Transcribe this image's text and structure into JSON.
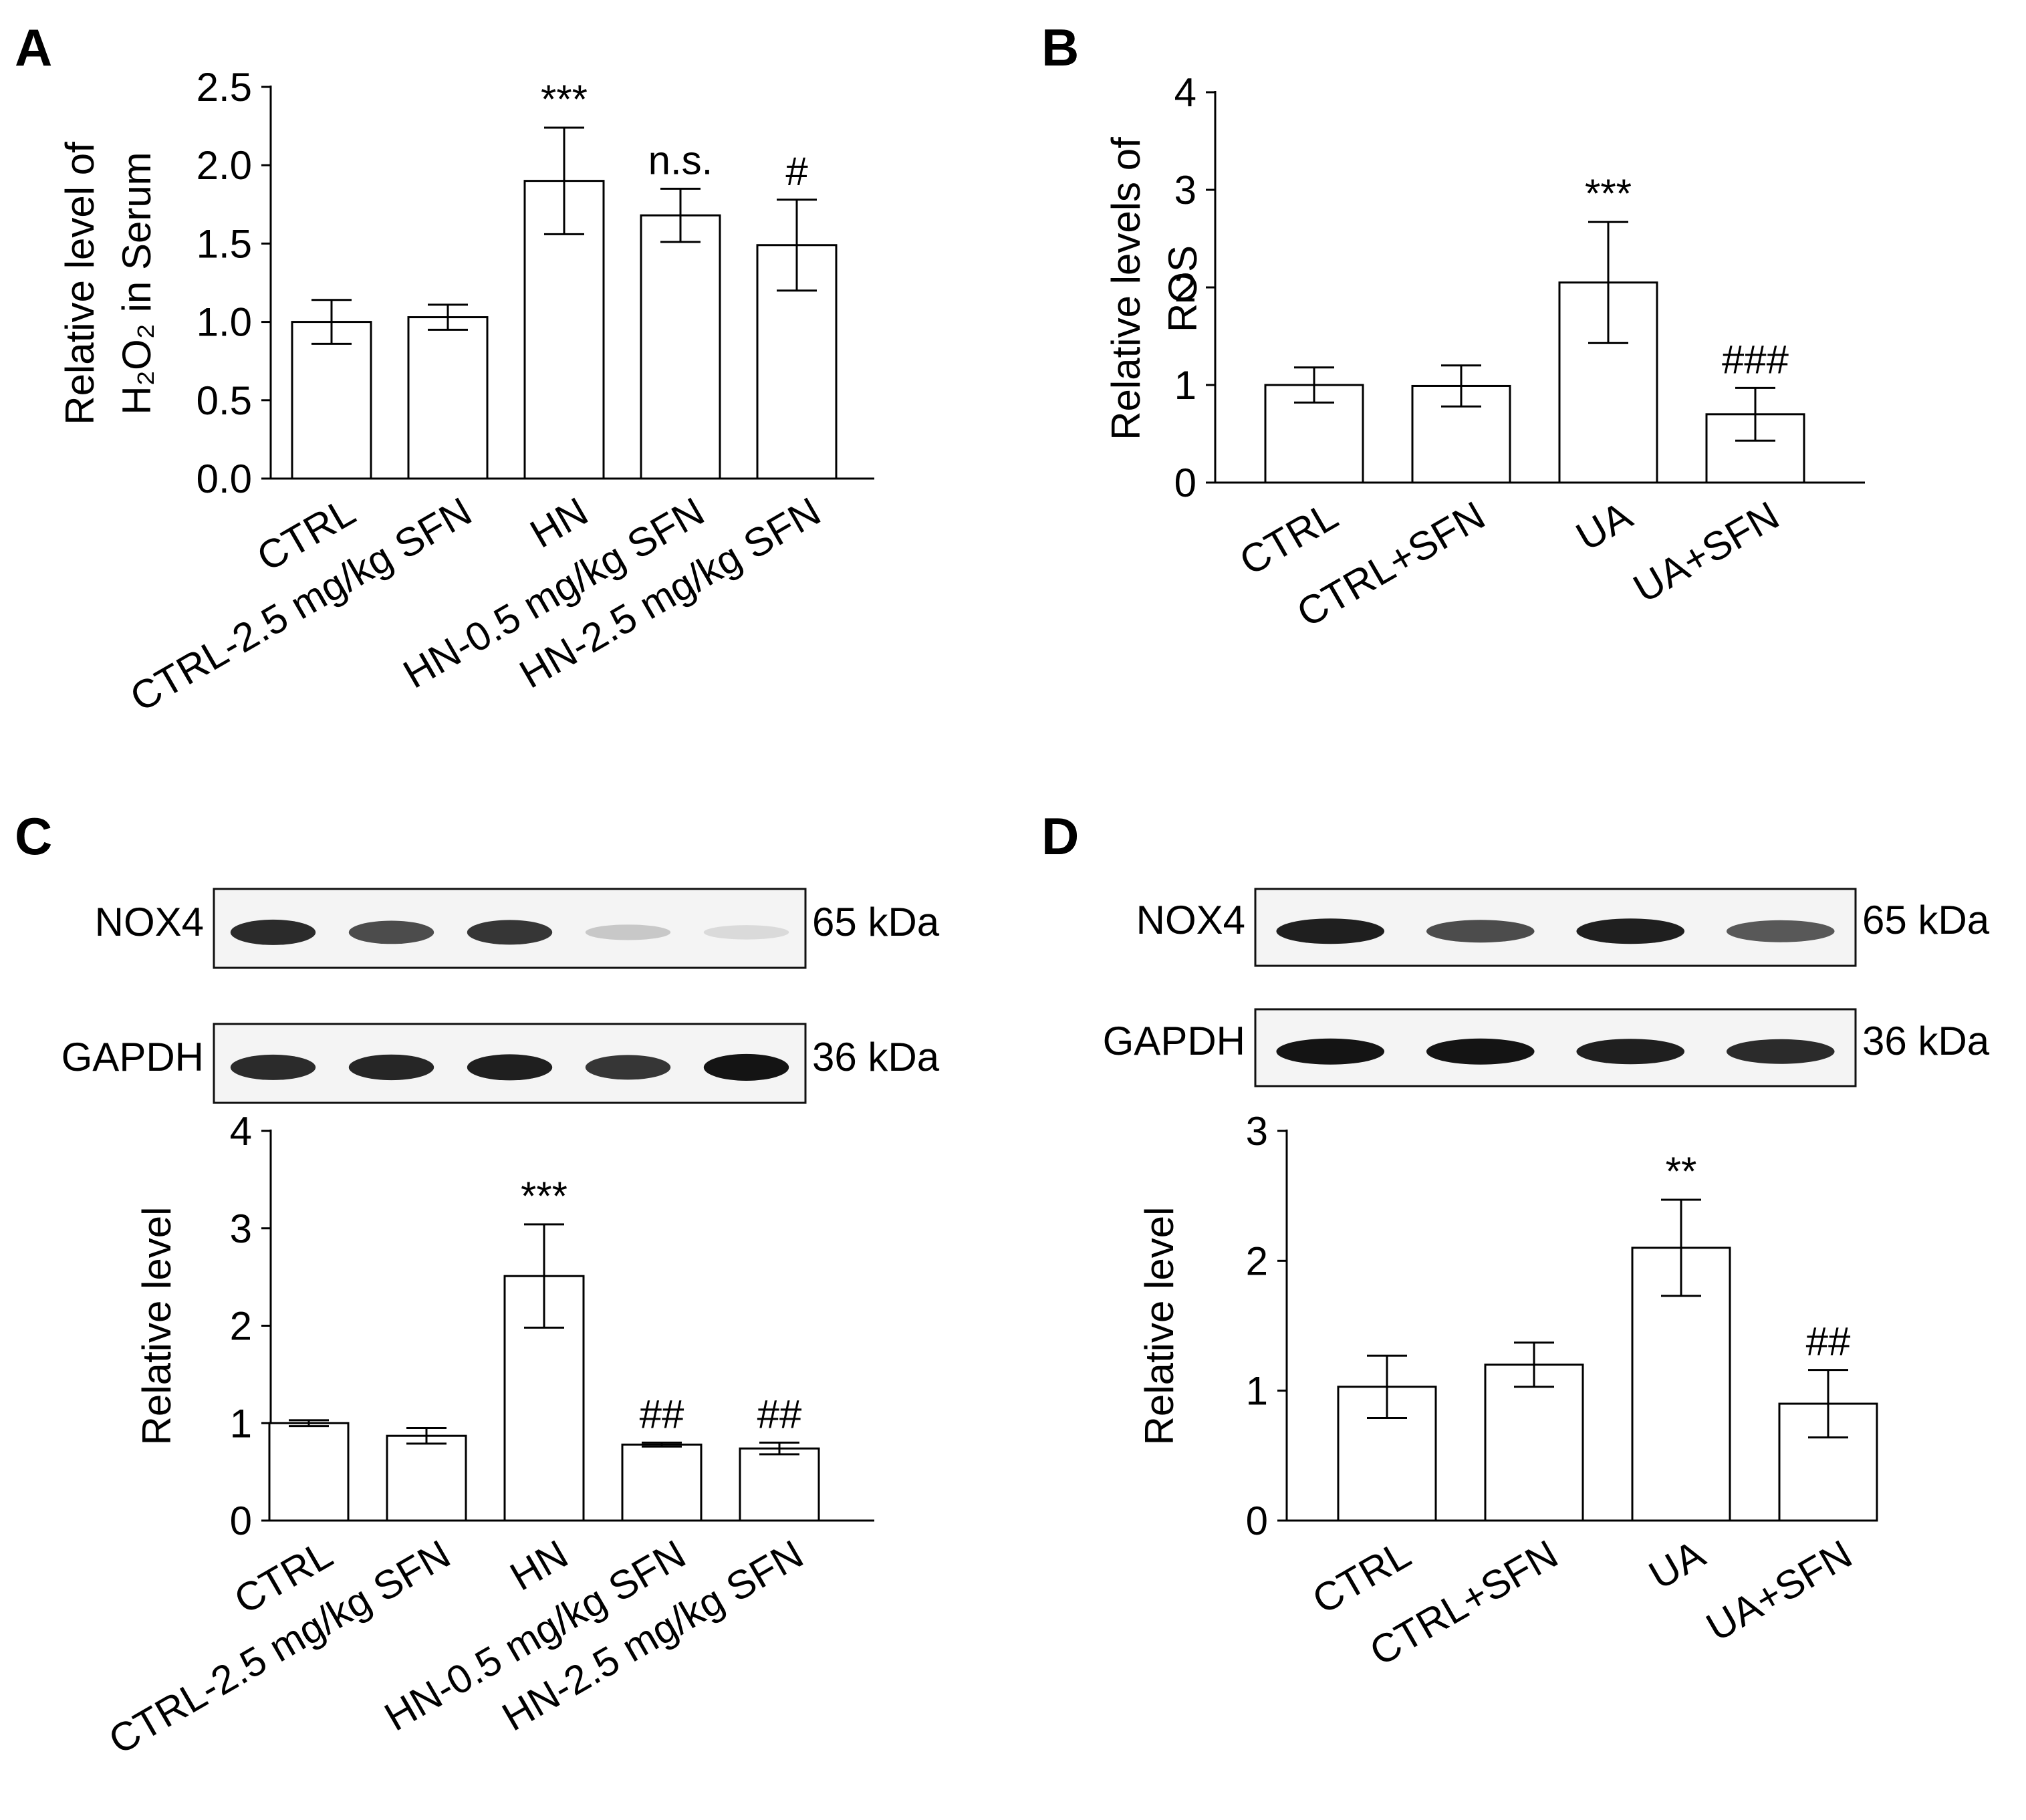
{
  "panels": {
    "A": {
      "letter": "A"
    },
    "B": {
      "letter": "B"
    },
    "C": {
      "letter": "C"
    },
    "D": {
      "letter": "D"
    }
  },
  "chart_data": [
    {
      "panel": "A",
      "type": "bar",
      "categories": [
        "CTRL",
        "CTRL-2.5 mg/kg SFN",
        "HN",
        "HN-0.5 mg/kg SFN",
        "HN-2.5 mg/kg SFN"
      ],
      "values": [
        1.0,
        1.03,
        1.9,
        1.68,
        1.49
      ],
      "errors": [
        0.14,
        0.08,
        0.34,
        0.17,
        0.29
      ],
      "annotations": [
        "",
        "",
        "***",
        "n.s.",
        "#"
      ],
      "ylabel_lines": [
        "Relative level of",
        "H₂O₂ in Serum"
      ],
      "ylim": [
        0,
        2.5
      ],
      "yticks": [
        "0.0",
        "0.5",
        "1.0",
        "1.5",
        "2.0",
        "2.5"
      ]
    },
    {
      "panel": "B",
      "type": "bar",
      "categories": [
        "CTRL",
        "CTRL+SFN",
        "UA",
        "UA+SFN"
      ],
      "values": [
        1.0,
        0.99,
        2.05,
        0.7
      ],
      "errors": [
        0.18,
        0.21,
        0.62,
        0.27
      ],
      "annotations": [
        "",
        "",
        "***",
        "###"
      ],
      "ylabel_lines": [
        "Relative levels of",
        "ROS"
      ],
      "ylim": [
        0,
        4
      ],
      "yticks": [
        "0",
        "1",
        "2",
        "3",
        "4"
      ]
    },
    {
      "panel": "C",
      "type": "bar",
      "categories": [
        "CTRL",
        "CTRL-2.5 mg/kg SFN",
        "HN",
        "HN-0.5 mg/kg SFN",
        "HN-2.5 mg/kg SFN"
      ],
      "values": [
        1.0,
        0.87,
        2.51,
        0.78,
        0.74
      ],
      "errors": [
        0.03,
        0.08,
        0.53,
        0.02,
        0.06
      ],
      "annotations": [
        "",
        "",
        "***",
        "##",
        "##"
      ],
      "ylabel_lines": [
        "Relative level"
      ],
      "ylim": [
        0,
        4
      ],
      "yticks": [
        "0",
        "1",
        "2",
        "3",
        "4"
      ],
      "blots": [
        {
          "label": "NOX4",
          "size": "65 kDa",
          "intensity": [
            0.9,
            0.75,
            0.85,
            0.2,
            0.12
          ]
        },
        {
          "label": "GAPDH",
          "size": "36 kDa",
          "intensity": [
            0.9,
            0.92,
            0.95,
            0.85,
            1.0
          ]
        }
      ]
    },
    {
      "panel": "D",
      "type": "bar",
      "categories": [
        "CTRL",
        "CTRL+SFN",
        "UA",
        "UA+SFN"
      ],
      "values": [
        1.03,
        1.2,
        2.1,
        0.9
      ],
      "errors": [
        0.24,
        0.17,
        0.37,
        0.26
      ],
      "annotations": [
        "",
        "",
        "**",
        "##"
      ],
      "ylabel_lines": [
        "Relative level"
      ],
      "ylim": [
        0,
        3
      ],
      "yticks": [
        "0",
        "1",
        "2",
        "3"
      ],
      "blots": [
        {
          "label": "NOX4",
          "size": "65 kDa",
          "intensity": [
            0.95,
            0.75,
            0.95,
            0.7
          ]
        },
        {
          "label": "GAPDH",
          "size": "36 kDa",
          "intensity": [
            1.0,
            1.0,
            0.95,
            0.9
          ]
        }
      ]
    }
  ]
}
